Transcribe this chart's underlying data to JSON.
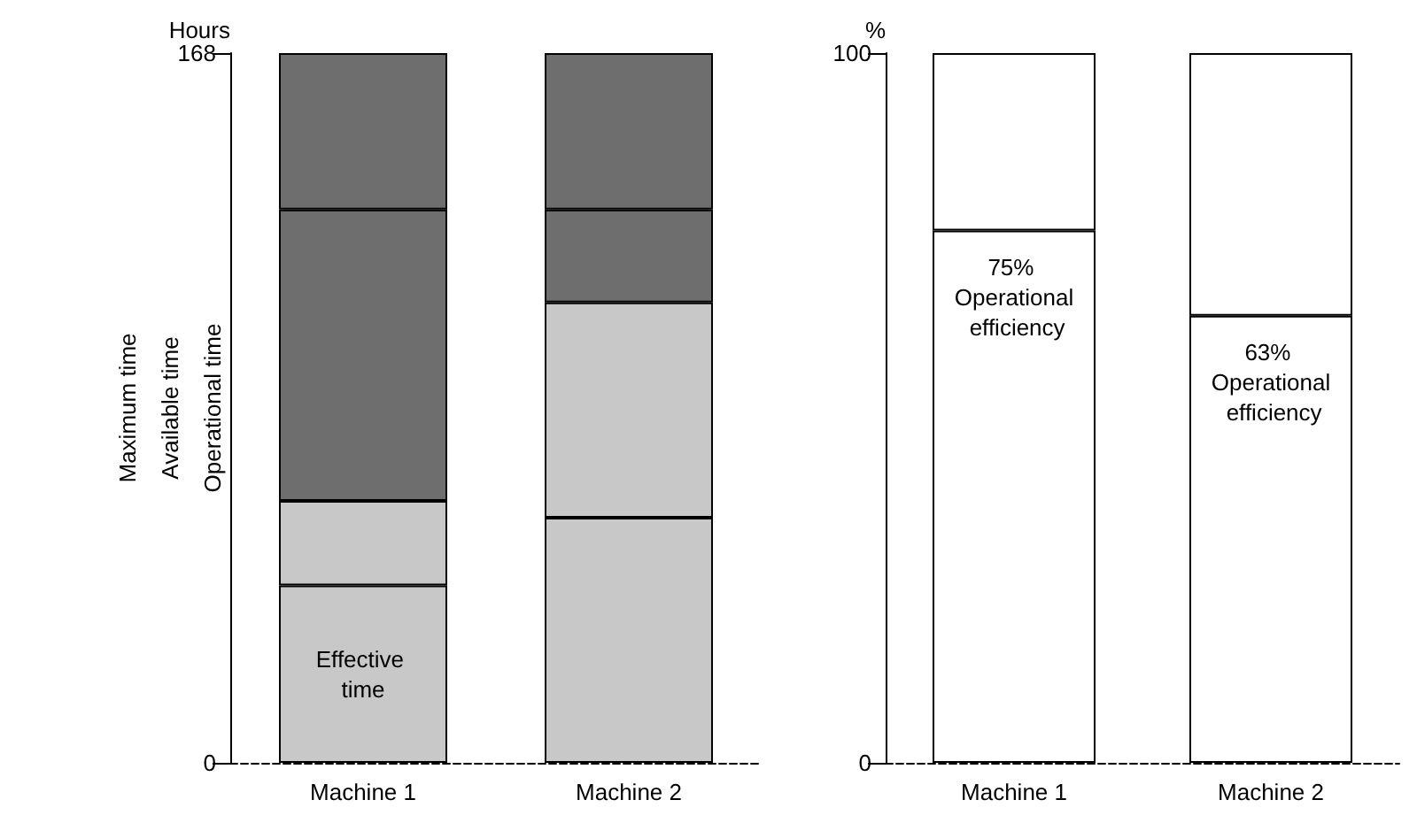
{
  "chart_data": [
    {
      "type": "bar",
      "stacked": true,
      "ylabel": "Hours",
      "categories": [
        "Machine 1",
        "Machine 2"
      ],
      "ylim": [
        0,
        168
      ],
      "yticks": [
        0,
        168
      ],
      "grid": false,
      "series": [
        {
          "color": "#c8c8c8",
          "values": [
            42,
            58
          ]
        },
        {
          "color": "#c8c8c8",
          "values": [
            20,
            51
          ]
        },
        {
          "color": "#6e6e6e",
          "values": [
            69,
            22
          ]
        },
        {
          "color": "#6e6e6e",
          "values": [
            37,
            37
          ]
        }
      ],
      "annotations": [
        "Maximum time",
        "Available time",
        "Operational time",
        "Effective time"
      ]
    },
    {
      "type": "bar",
      "stacked": true,
      "ylabel": "%",
      "categories": [
        "Machine 1",
        "Machine 2"
      ],
      "ylim": [
        0,
        100
      ],
      "yticks": [
        0,
        100
      ],
      "grid": false,
      "series": [
        {
          "color": "#ffffff",
          "values": [
            75,
            63
          ],
          "value_labels": [
            "75% Operational efficiency",
            "63% Operational efficiency"
          ]
        },
        {
          "color": "#ffffff",
          "values": [
            25,
            37
          ]
        }
      ]
    }
  ]
}
